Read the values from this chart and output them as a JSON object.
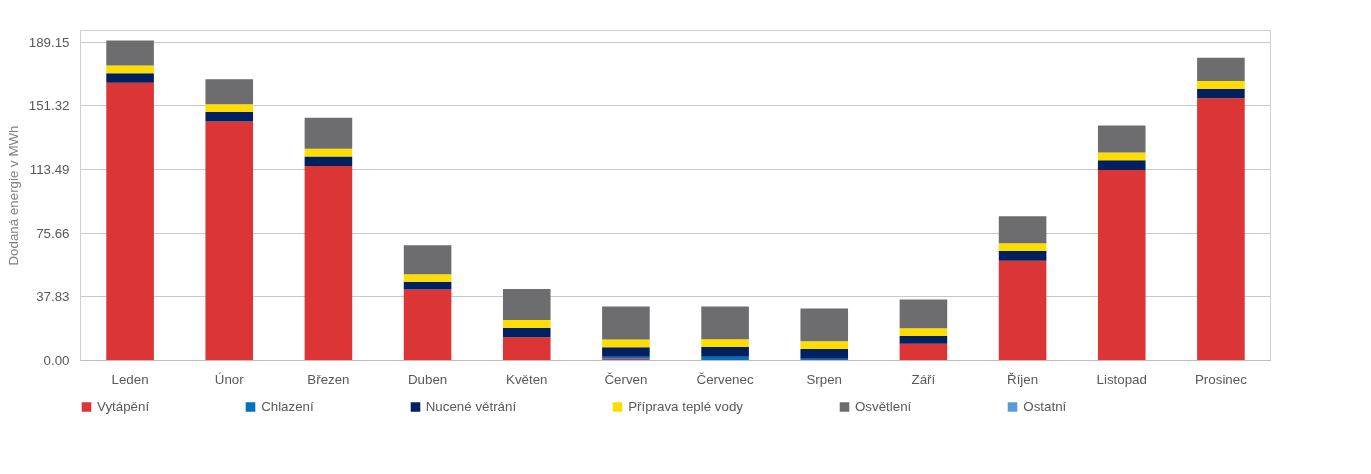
{
  "chart_data": {
    "type": "bar",
    "stacked": true,
    "ylabel": "Dodaná energie v MWh",
    "categories": [
      "Leden",
      "Únor",
      "Březen",
      "Duben",
      "Květen",
      "Červen",
      "Červenec",
      "Srpen",
      "Září",
      "Říjen",
      "Listopad",
      "Prosinec"
    ],
    "series": [
      {
        "name": "Vytápění",
        "color": "#db3535",
        "values": [
          164.9,
          141.9,
          115.5,
          42.1,
          13.8,
          1.1,
          0,
          0,
          9.9,
          59.3,
          113.2,
          155.7
        ]
      },
      {
        "name": "Chlazení",
        "color": "#0070c0",
        "values": [
          0,
          0,
          0,
          0,
          0,
          1.1,
          2.3,
          1.1,
          0,
          0,
          0,
          0
        ]
      },
      {
        "name": "Nucené větrání",
        "color": "#002060",
        "values": [
          5.7,
          5.7,
          5.7,
          4.6,
          5.7,
          5.7,
          5.7,
          5.7,
          4.6,
          5.7,
          5.7,
          5.7
        ]
      },
      {
        "name": "Příprava teplé vody",
        "color": "#ffdd00",
        "values": [
          4.6,
          4.6,
          4.6,
          4.6,
          4.6,
          4.6,
          4.6,
          4.6,
          4.6,
          4.6,
          4.6,
          4.6
        ]
      },
      {
        "name": "Osvětlení",
        "color": "#6d6d6f",
        "values": [
          14.9,
          14.9,
          18.4,
          17.2,
          18.4,
          19.5,
          19.5,
          19.5,
          17.2,
          16.1,
          16.1,
          13.8
        ]
      },
      {
        "name": "Ostatní",
        "color": "#5b9bd5",
        "values": [
          0,
          0,
          0,
          0,
          0,
          0,
          0,
          0,
          0,
          0,
          0,
          0
        ]
      }
    ],
    "ylim": [
      0,
      196
    ],
    "yticks": [
      {
        "value": 0,
        "label": "0.00"
      },
      37.83,
      75.66,
      113.49,
      151.32,
      189.15
    ],
    "grid": "y",
    "legend": "bottom"
  }
}
